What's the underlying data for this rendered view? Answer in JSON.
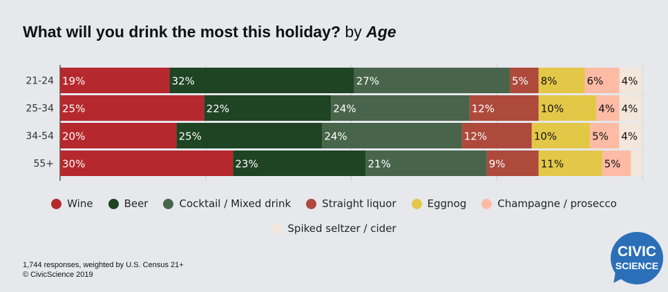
{
  "chart_data": {
    "type": "bar",
    "orientation": "horizontal",
    "stacked": "100%",
    "title": "What will you drink the most this holiday?",
    "subtitle": "by",
    "subtitle_em": "Age",
    "categories": [
      "21-24",
      "25-34",
      "34-54",
      "55+"
    ],
    "series": [
      {
        "name": "Wine",
        "color": "#b5292e",
        "values": [
          19,
          25,
          20,
          30
        ],
        "label_color": "#ffffff"
      },
      {
        "name": "Beer",
        "color": "#1e4424",
        "values": [
          32,
          22,
          25,
          23
        ],
        "label_color": "#ffffff"
      },
      {
        "name": "Cocktail / Mixed drink",
        "color": "#48654b",
        "values": [
          27,
          24,
          24,
          21
        ],
        "label_color": "#ffffff"
      },
      {
        "name": "Straight liquor",
        "color": "#ad4a3c",
        "values": [
          5,
          12,
          12,
          9
        ],
        "label_color": "#ffffff"
      },
      {
        "name": "Eggnog",
        "color": "#e3c848",
        "values": [
          8,
          10,
          10,
          11
        ],
        "label_color": "#111111"
      },
      {
        "name": "Champagne / prosecco",
        "color": "#fdbba5",
        "values": [
          6,
          4,
          5,
          5
        ],
        "label_color": "#111111"
      },
      {
        "name": "Spiked seltzer / cider",
        "color": "#f3e6da",
        "values": [
          4,
          4,
          4,
          2
        ],
        "label_color": "#111111",
        "hide_label": [
          false,
          false,
          false,
          true
        ]
      }
    ],
    "xlim": [
      0,
      100
    ],
    "grid": true,
    "legend": "bottom"
  },
  "footer": {
    "line1": "1,744 responses, weighted by U.S. Census 21+",
    "line2": "© CivicScience 2019"
  },
  "logo": {
    "line1": "CIVIC",
    "line2": "SCIENCE"
  }
}
